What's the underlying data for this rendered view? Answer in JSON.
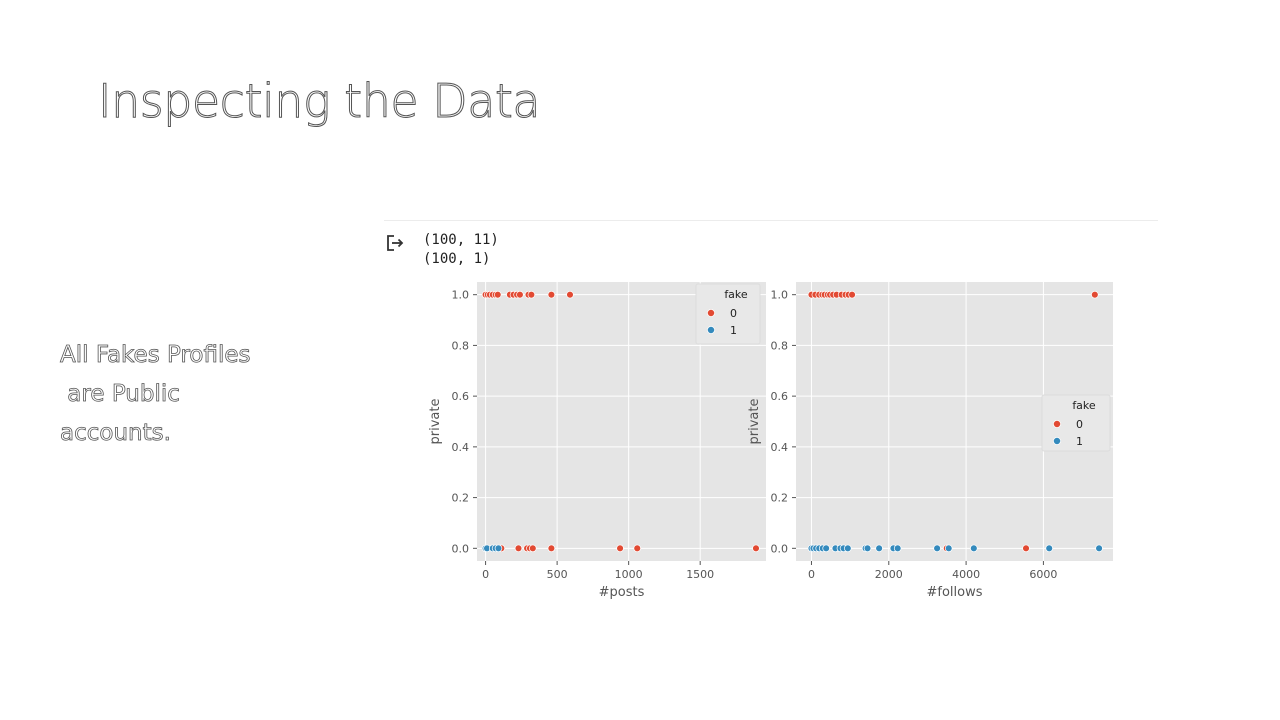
{
  "slide": {
    "title": "Inspecting the Data",
    "note_lines": [
      "All Fakes Profiles",
      " are Public",
      "accounts."
    ]
  },
  "notebook_output": {
    "lines": [
      "(100, 11)",
      "(100, 1)"
    ]
  },
  "colors": {
    "fake_0": "#e24a33",
    "fake_1": "#348abd",
    "plot_bg": "#e5e5e5",
    "grid": "#ffffff"
  },
  "chart_data": [
    {
      "type": "scatter",
      "xlabel": "#posts",
      "ylabel": "private",
      "xlim": [
        -60,
        1960
      ],
      "ylim": [
        -0.05,
        1.05
      ],
      "xticks": [
        0,
        500,
        1000,
        1500
      ],
      "yticks": [
        "0.0",
        "0.2",
        "0.4",
        "0.6",
        "0.8",
        "1.0"
      ],
      "grid": true,
      "legend": {
        "title": "fake",
        "position": "top-right",
        "entries": [
          "0",
          "1"
        ]
      },
      "series": [
        {
          "name": "0",
          "points": [
            [
              0,
              1
            ],
            [
              15,
              1
            ],
            [
              30,
              1
            ],
            [
              50,
              1
            ],
            [
              70,
              1
            ],
            [
              85,
              1
            ],
            [
              170,
              1
            ],
            [
              195,
              1
            ],
            [
              220,
              1
            ],
            [
              240,
              1
            ],
            [
              300,
              1
            ],
            [
              320,
              1
            ],
            [
              460,
              1
            ],
            [
              590,
              1
            ],
            [
              110,
              0
            ],
            [
              230,
              0
            ],
            [
              290,
              0
            ],
            [
              310,
              0
            ],
            [
              330,
              0
            ],
            [
              460,
              0
            ],
            [
              940,
              0
            ],
            [
              1060,
              0
            ],
            [
              1890,
              0
            ]
          ]
        },
        {
          "name": "1",
          "points": [
            [
              0,
              0
            ],
            [
              10,
              0
            ],
            [
              50,
              0
            ],
            [
              70,
              0
            ],
            [
              90,
              0
            ]
          ]
        }
      ]
    },
    {
      "type": "scatter",
      "xlabel": "#follows",
      "ylabel": "private",
      "xlim": [
        -400,
        7800
      ],
      "ylim": [
        -0.05,
        1.05
      ],
      "xticks": [
        0,
        2000,
        4000,
        6000
      ],
      "yticks": [
        "0.0",
        "0.2",
        "0.4",
        "0.6",
        "0.8",
        "1.0"
      ],
      "grid": true,
      "legend": {
        "title": "fake",
        "position": "center-right",
        "entries": [
          "0",
          "1"
        ]
      },
      "series": [
        {
          "name": "0",
          "points": [
            [
              0,
              1
            ],
            [
              100,
              1
            ],
            [
              200,
              1
            ],
            [
              280,
              1
            ],
            [
              340,
              1
            ],
            [
              420,
              1
            ],
            [
              480,
              1
            ],
            [
              560,
              1
            ],
            [
              650,
              1
            ],
            [
              780,
              1
            ],
            [
              880,
              1
            ],
            [
              960,
              1
            ],
            [
              1050,
              1
            ],
            [
              7330,
              1
            ],
            [
              3500,
              0
            ],
            [
              5550,
              0
            ]
          ]
        },
        {
          "name": "1",
          "points": [
            [
              0,
              0
            ],
            [
              50,
              0
            ],
            [
              120,
              0
            ],
            [
              200,
              0
            ],
            [
              290,
              0
            ],
            [
              380,
              0
            ],
            [
              620,
              0
            ],
            [
              750,
              0
            ],
            [
              830,
              0
            ],
            [
              940,
              0
            ],
            [
              1400,
              0
            ],
            [
              1450,
              0
            ],
            [
              1750,
              0
            ],
            [
              2120,
              0
            ],
            [
              2230,
              0
            ],
            [
              3250,
              0
            ],
            [
              3550,
              0
            ],
            [
              4200,
              0
            ],
            [
              6150,
              0
            ],
            [
              7440,
              0
            ]
          ]
        }
      ]
    }
  ]
}
